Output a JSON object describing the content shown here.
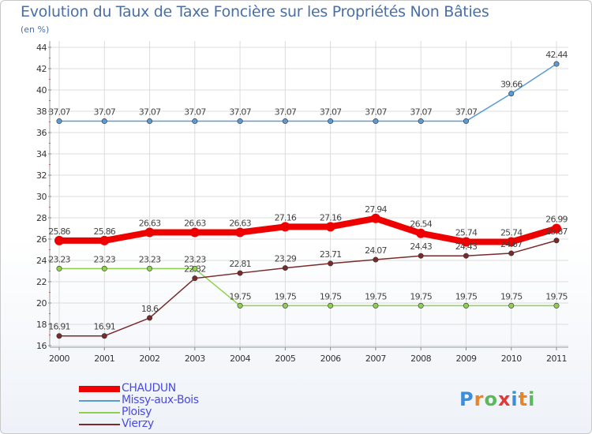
{
  "header": {
    "title": "Evolution du Taux de Taxe Foncière sur les Propriétés Non Bâties",
    "unit": "(en %)"
  },
  "logo": {
    "text": "Proxiti"
  },
  "chart_data": {
    "type": "line",
    "title": "Evolution du Taux de Taxe Foncière sur les Propriétés Non Bâties",
    "ylabel": "(en %)",
    "xlabel": "",
    "ylim": [
      16,
      44
    ],
    "yticks": [
      16,
      18,
      20,
      22,
      24,
      26,
      28,
      30,
      32,
      34,
      36,
      38,
      40,
      42,
      44
    ],
    "categories": [
      "2000",
      "2001",
      "2002",
      "2003",
      "2004",
      "2005",
      "2006",
      "2007",
      "2008",
      "2009",
      "2010",
      "2011"
    ],
    "legend_position": "bottom-left",
    "series": [
      {
        "name": "CHAUDUN",
        "color": "#ee0000",
        "highlight": true,
        "values": [
          25.86,
          25.86,
          26.63,
          26.63,
          26.63,
          27.16,
          27.16,
          27.94,
          26.54,
          25.74,
          25.74,
          26.99
        ],
        "labels": [
          "25.86",
          "25.86",
          "26.63",
          "26.63",
          "26.63",
          "27.16",
          "27.16",
          "27.94",
          "26.54",
          "25.74",
          "25.74",
          "26.99"
        ]
      },
      {
        "name": "Missy-aux-Bois",
        "color": "#5b9bd5",
        "highlight": false,
        "values": [
          37.07,
          37.07,
          37.07,
          37.07,
          37.07,
          37.07,
          37.07,
          37.07,
          37.07,
          37.07,
          39.66,
          42.44
        ],
        "labels": [
          "37.07",
          "37.07",
          "37.07",
          "37.07",
          "37.07",
          "37.07",
          "37.07",
          "37.07",
          "37.07",
          "37.07",
          "39.66",
          "42.44"
        ]
      },
      {
        "name": "Ploisy",
        "color": "#8fd14f",
        "highlight": false,
        "values": [
          23.23,
          23.23,
          23.23,
          23.23,
          19.75,
          19.75,
          19.75,
          19.75,
          19.75,
          19.75,
          19.75,
          19.75
        ],
        "labels": [
          "23.23",
          "23.23",
          "23.23",
          "23.23",
          "19.75",
          "19.75",
          "19.75",
          "19.75",
          "19.75",
          "19.75",
          "19.75",
          "19.75"
        ]
      },
      {
        "name": "Vierzy",
        "color": "#7a2a2a",
        "highlight": false,
        "values": [
          16.91,
          16.91,
          18.6,
          22.32,
          22.81,
          23.29,
          23.71,
          24.07,
          24.43,
          24.43,
          24.67,
          25.87
        ],
        "labels": [
          "16.91",
          "16.91",
          "18.6",
          "22.32",
          "22.81",
          "23.29",
          "23.71",
          "24.07",
          "24.43",
          "24.43",
          "24.67",
          "25.87"
        ]
      }
    ]
  }
}
